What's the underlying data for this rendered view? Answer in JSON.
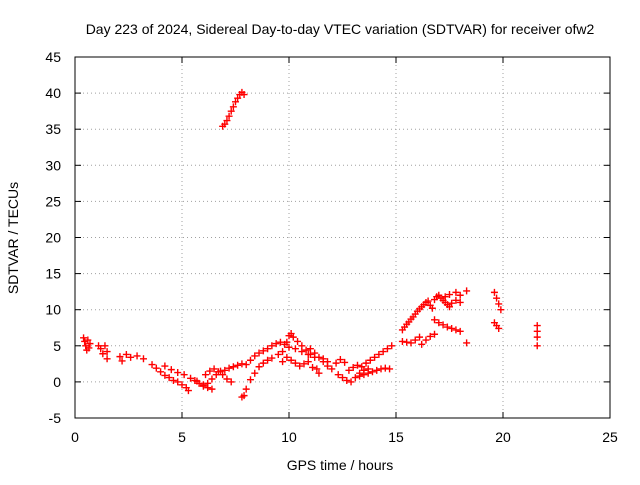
{
  "chart_data": {
    "type": "scatter",
    "title": "Day 223 of 2024, Sidereal Day-to-day VTEC variation (SDTVAR) for receiver ofw2",
    "xlabel": "GPS time / hours",
    "ylabel": "SDTVAR / TECUs",
    "xlim": [
      0,
      25
    ],
    "ylim": [
      -5,
      45
    ],
    "x_ticks": [
      0,
      5,
      10,
      15,
      20,
      25
    ],
    "y_ticks": [
      -5,
      0,
      5,
      10,
      15,
      20,
      25,
      30,
      35,
      40,
      45
    ],
    "x_tick_labels": [
      "0",
      "5",
      "10",
      "15",
      "20",
      "25"
    ],
    "y_tick_labels": [
      "-5",
      "0",
      "5",
      "10",
      "15",
      "20",
      "25",
      "30",
      "35",
      "40",
      "45"
    ],
    "grid": true,
    "marker": "plus",
    "series_color": "#ff0000",
    "series": [
      {
        "name": "SDTVAR",
        "points": [
          [
            0.4,
            6.1
          ],
          [
            0.45,
            5.6
          ],
          [
            0.5,
            5.0
          ],
          [
            0.55,
            4.4
          ],
          [
            0.6,
            5.8
          ],
          [
            0.65,
            4.7
          ],
          [
            0.7,
            5.3
          ],
          [
            1.1,
            5.0
          ],
          [
            1.2,
            4.6
          ],
          [
            1.3,
            3.9
          ],
          [
            1.4,
            5.0
          ],
          [
            1.5,
            4.2
          ],
          [
            1.5,
            3.2
          ],
          [
            2.1,
            3.5
          ],
          [
            2.2,
            2.9
          ],
          [
            2.4,
            3.8
          ],
          [
            2.6,
            3.4
          ],
          [
            2.9,
            3.6
          ],
          [
            3.2,
            3.2
          ],
          [
            3.6,
            2.4
          ],
          [
            3.8,
            1.9
          ],
          [
            4.0,
            1.4
          ],
          [
            4.2,
            0.9
          ],
          [
            4.4,
            0.6
          ],
          [
            4.6,
            0.2
          ],
          [
            4.8,
            0.0
          ],
          [
            5.0,
            -0.4
          ],
          [
            5.2,
            -0.8
          ],
          [
            5.3,
            -1.2
          ],
          [
            4.2,
            2.2
          ],
          [
            4.5,
            1.7
          ],
          [
            4.8,
            1.3
          ],
          [
            5.1,
            1.0
          ],
          [
            5.4,
            0.5
          ],
          [
            5.7,
            0.1
          ],
          [
            6.0,
            -0.4
          ],
          [
            6.2,
            -0.8
          ],
          [
            6.4,
            -1.0
          ],
          [
            5.6,
            0.2
          ],
          [
            5.8,
            -0.2
          ],
          [
            6.0,
            -0.6
          ],
          [
            6.2,
            -0.2
          ],
          [
            6.4,
            0.4
          ],
          [
            6.6,
            1.0
          ],
          [
            6.8,
            1.5
          ],
          [
            7.0,
            1.6
          ],
          [
            7.2,
            1.9
          ],
          [
            7.4,
            2.1
          ],
          [
            7.6,
            2.3
          ],
          [
            7.8,
            2.5
          ],
          [
            6.1,
            1.0
          ],
          [
            6.3,
            1.5
          ],
          [
            6.5,
            1.8
          ],
          [
            6.7,
            1.4
          ],
          [
            6.9,
            1.0
          ],
          [
            7.1,
            0.4
          ],
          [
            7.3,
            0.0
          ],
          [
            6.9,
            35.4
          ],
          [
            7.0,
            35.7
          ],
          [
            7.1,
            36.2
          ],
          [
            7.2,
            36.8
          ],
          [
            7.3,
            37.5
          ],
          [
            7.4,
            38.1
          ],
          [
            7.5,
            38.8
          ],
          [
            7.6,
            39.3
          ],
          [
            7.7,
            39.8
          ],
          [
            7.8,
            40.1
          ],
          [
            7.9,
            39.8
          ],
          [
            7.8,
            -2.1
          ],
          [
            7.9,
            -1.9
          ],
          [
            8.0,
            -1.0
          ],
          [
            8.2,
            0.3
          ],
          [
            8.4,
            1.2
          ],
          [
            8.6,
            2.1
          ],
          [
            8.8,
            2.6
          ],
          [
            9.0,
            3.0
          ],
          [
            9.2,
            3.3
          ],
          [
            8.0,
            2.4
          ],
          [
            8.2,
            3.0
          ],
          [
            8.4,
            3.6
          ],
          [
            8.6,
            4.0
          ],
          [
            8.8,
            4.3
          ],
          [
            9.0,
            4.6
          ],
          [
            9.2,
            5.0
          ],
          [
            9.4,
            5.3
          ],
          [
            9.6,
            5.5
          ],
          [
            9.8,
            5.2
          ],
          [
            9.5,
            3.8
          ],
          [
            9.7,
            4.2
          ],
          [
            9.9,
            5.5
          ],
          [
            10.0,
            6.4
          ],
          [
            10.1,
            6.7
          ],
          [
            10.2,
            6.2
          ],
          [
            10.4,
            5.6
          ],
          [
            10.6,
            5.0
          ],
          [
            10.8,
            4.4
          ],
          [
            11.0,
            3.8
          ],
          [
            9.7,
            2.8
          ],
          [
            9.9,
            3.4
          ],
          [
            10.1,
            3.0
          ],
          [
            10.3,
            2.6
          ],
          [
            10.5,
            2.2
          ],
          [
            10.7,
            2.5
          ],
          [
            10.9,
            2.8
          ],
          [
            11.1,
            2.0
          ],
          [
            11.3,
            1.8
          ],
          [
            10.0,
            4.8
          ],
          [
            10.3,
            4.6
          ],
          [
            10.6,
            4.2
          ],
          [
            10.9,
            3.8
          ],
          [
            11.2,
            3.4
          ],
          [
            11.4,
            1.2
          ],
          [
            11.6,
            3.2
          ],
          [
            11.8,
            2.8
          ],
          [
            11.0,
            4.6
          ],
          [
            11.2,
            4.0
          ],
          [
            11.4,
            3.4
          ],
          [
            11.6,
            2.8
          ],
          [
            11.8,
            2.2
          ],
          [
            12.0,
            1.8
          ],
          [
            12.2,
            2.6
          ],
          [
            12.4,
            3.1
          ],
          [
            12.6,
            2.7
          ],
          [
            12.3,
            1.0
          ],
          [
            12.5,
            0.6
          ],
          [
            12.7,
            0.2
          ],
          [
            12.9,
            0.0
          ],
          [
            13.1,
            0.6
          ],
          [
            13.3,
            1.2
          ],
          [
            13.5,
            1.6
          ],
          [
            13.7,
            1.8
          ],
          [
            12.8,
            1.6
          ],
          [
            13.0,
            2.0
          ],
          [
            13.2,
            2.3
          ],
          [
            13.4,
            2.1
          ],
          [
            13.6,
            2.6
          ],
          [
            13.8,
            3.0
          ],
          [
            14.0,
            3.4
          ],
          [
            14.2,
            3.8
          ],
          [
            14.4,
            4.2
          ],
          [
            14.6,
            4.6
          ],
          [
            14.8,
            5.0
          ],
          [
            13.3,
            0.8
          ],
          [
            13.5,
            1.0
          ],
          [
            13.7,
            1.2
          ],
          [
            13.9,
            1.4
          ],
          [
            14.1,
            1.6
          ],
          [
            14.3,
            1.8
          ],
          [
            14.5,
            1.9
          ],
          [
            14.7,
            1.8
          ],
          [
            15.3,
            7.2
          ],
          [
            15.4,
            7.6
          ],
          [
            15.5,
            8.0
          ],
          [
            15.6,
            8.3
          ],
          [
            15.7,
            8.7
          ],
          [
            15.8,
            9.0
          ],
          [
            15.9,
            9.4
          ],
          [
            16.0,
            9.8
          ],
          [
            16.1,
            10.1
          ],
          [
            16.2,
            10.4
          ],
          [
            16.3,
            10.7
          ],
          [
            16.4,
            11.0
          ],
          [
            16.5,
            11.2
          ],
          [
            15.3,
            5.6
          ],
          [
            15.5,
            5.5
          ],
          [
            15.7,
            5.4
          ],
          [
            15.9,
            5.8
          ],
          [
            16.1,
            6.2
          ],
          [
            16.2,
            5.2
          ],
          [
            16.4,
            5.8
          ],
          [
            16.6,
            6.3
          ],
          [
            16.8,
            6.6
          ],
          [
            16.6,
            10.6
          ],
          [
            16.7,
            10.2
          ],
          [
            16.8,
            11.4
          ],
          [
            16.9,
            11.8
          ],
          [
            17.0,
            12.0
          ],
          [
            17.1,
            11.6
          ],
          [
            17.2,
            11.3
          ],
          [
            17.3,
            11.0
          ],
          [
            17.4,
            10.7
          ],
          [
            17.5,
            10.4
          ],
          [
            17.6,
            10.9
          ],
          [
            17.8,
            11.3
          ],
          [
            18.0,
            11.0
          ],
          [
            16.8,
            8.6
          ],
          [
            17.0,
            8.2
          ],
          [
            17.2,
            7.9
          ],
          [
            17.4,
            7.6
          ],
          [
            17.6,
            7.4
          ],
          [
            17.8,
            7.2
          ],
          [
            18.0,
            7.0
          ],
          [
            17.3,
            11.8
          ],
          [
            17.5,
            12.1
          ],
          [
            17.8,
            12.4
          ],
          [
            18.0,
            12.0
          ],
          [
            18.3,
            12.6
          ],
          [
            18.3,
            5.4
          ],
          [
            19.6,
            12.4
          ],
          [
            19.7,
            11.6
          ],
          [
            19.8,
            10.8
          ],
          [
            19.9,
            10.0
          ],
          [
            19.6,
            8.2
          ],
          [
            19.7,
            7.8
          ],
          [
            19.8,
            7.4
          ],
          [
            21.6,
            7.8
          ],
          [
            21.6,
            7.0
          ],
          [
            21.6,
            6.2
          ],
          [
            21.6,
            5.0
          ]
        ]
      }
    ]
  }
}
